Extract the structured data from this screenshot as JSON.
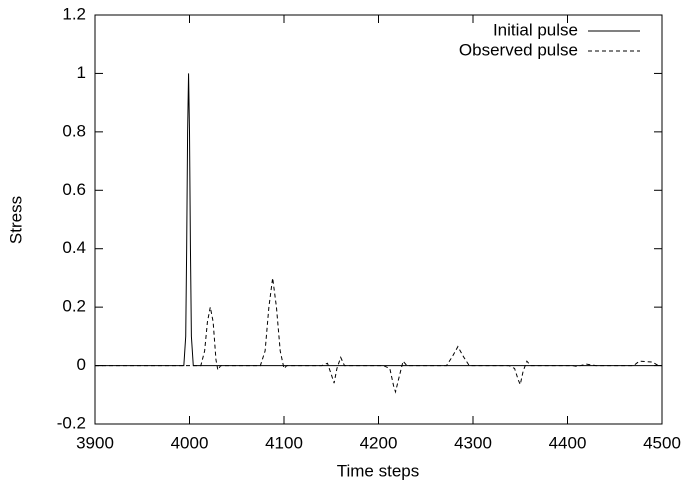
{
  "chart_data": {
    "type": "line",
    "xlabel": "Time steps",
    "ylabel": "Stress",
    "x": [
      3900,
      3994,
      3996,
      3997,
      3998,
      3999,
      4000,
      4001,
      4002,
      4004,
      4012,
      4016,
      4019,
      4022,
      4025,
      4028,
      4030,
      4033,
      4075,
      4080,
      4084,
      4088,
      4092,
      4096,
      4100,
      4103,
      4140,
      4146,
      4150,
      4153,
      4156,
      4160,
      4164,
      4205,
      4212,
      4216,
      4218,
      4221,
      4226,
      4230,
      4272,
      4278,
      4284,
      4290,
      4296,
      4338,
      4344,
      4348,
      4350,
      4353,
      4357,
      4361,
      4405,
      4410,
      4420,
      4430,
      4470,
      4476,
      4490,
      4496,
      4500
    ],
    "series": [
      {
        "name": "Initial pulse",
        "color": "#000000",
        "dash": "solid",
        "values": [
          0,
          0,
          0.1,
          0.4,
          0.8,
          1,
          0.8,
          0.4,
          0.1,
          0,
          0,
          0,
          0,
          0,
          0,
          0,
          0,
          0,
          0,
          0,
          0,
          0,
          0,
          0,
          0,
          0,
          0,
          0,
          0,
          0,
          0,
          0,
          0,
          0,
          0,
          0,
          0,
          0,
          0,
          0,
          0,
          0,
          0,
          0,
          0,
          0,
          0,
          0,
          0,
          0,
          0,
          0,
          0,
          0,
          0,
          0,
          0,
          0,
          0,
          0,
          0
        ]
      },
      {
        "name": "Observed pulse",
        "color": "#000000",
        "dash": "dashed",
        "values": [
          0,
          0,
          0,
          0,
          0,
          0,
          0,
          0,
          0,
          0,
          0,
          0.05,
          0.15,
          0.2,
          0.15,
          0.02,
          -0.015,
          0,
          0,
          0.05,
          0.2,
          0.3,
          0.2,
          0.05,
          -0.01,
          0,
          0,
          0.008,
          -0.03,
          -0.06,
          -0.01,
          0.028,
          0,
          0,
          -0.01,
          -0.07,
          -0.09,
          -0.05,
          0.015,
          0,
          0,
          0.03,
          0.065,
          0.03,
          0,
          0,
          -0.01,
          -0.05,
          -0.065,
          -0.02,
          0.015,
          0,
          0,
          -0.003,
          0.005,
          0,
          0,
          0.015,
          0.012,
          0,
          0
        ]
      }
    ],
    "xlim": [
      3900,
      4500
    ],
    "xticks": [
      3900,
      4000,
      4100,
      4200,
      4300,
      4400,
      4500
    ],
    "ylim": [
      -0.2,
      1.2
    ],
    "yticks": [
      -0.2,
      0,
      0.2,
      0.4,
      0.6,
      0.8,
      1,
      1.2
    ],
    "grid": false,
    "legend": "top-right"
  }
}
